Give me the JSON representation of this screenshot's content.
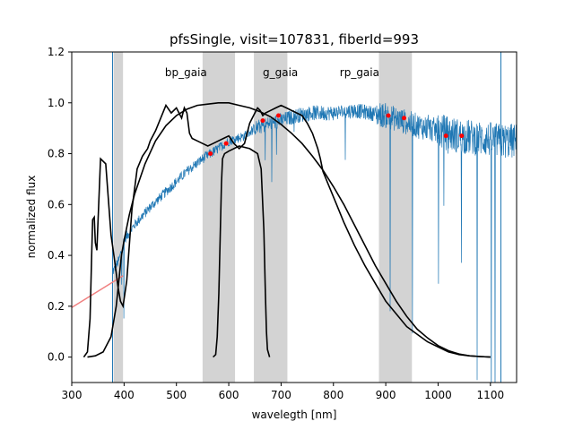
{
  "chart_data": {
    "type": "line",
    "title": "pfsSingle, visit=107831, fiberId=993",
    "xlabel": "wavelegth [nm]",
    "ylabel": "normalized flux",
    "xlim": [
      300,
      1150
    ],
    "ylim": [
      -0.1,
      1.2
    ],
    "grid": false,
    "xticks": [
      "300",
      "400",
      "500",
      "600",
      "700",
      "800",
      "900",
      "1000",
      "1100"
    ],
    "xtick_values": [
      300,
      400,
      500,
      600,
      700,
      800,
      900,
      1000,
      1100
    ],
    "yticks": [
      "0.0",
      "0.2",
      "0.4",
      "0.6",
      "0.8",
      "1.0",
      "1.2"
    ],
    "ytick_values": [
      0.0,
      0.2,
      0.4,
      0.6,
      0.8,
      1.0,
      1.2
    ],
    "colors": {
      "spectrum": "#1f77b4",
      "filters": "#000000",
      "points": "#ff0000",
      "fit_line": "#f08080",
      "masked_band": "#d3d3d3"
    },
    "masked_bands": [
      [
        380,
        398
      ],
      [
        550,
        612
      ],
      [
        648,
        712
      ],
      [
        887,
        950
      ]
    ],
    "filter_labels": [
      {
        "text": "bp_gaia",
        "x": 478,
        "y": 1.105
      },
      {
        "text": "g_gaia",
        "x": 665,
        "y": 1.105
      },
      {
        "text": "rp_gaia",
        "x": 812,
        "y": 1.105
      }
    ],
    "series": [
      {
        "name": "spectrum",
        "kind": "noisy_spectrum",
        "x": [
          380,
          390,
          400,
          420,
          450,
          480,
          500,
          520,
          550,
          580,
          600,
          630,
          650,
          680,
          700,
          730,
          760,
          800,
          840,
          870,
          900,
          930,
          960,
          1000,
          1040,
          1080,
          1120,
          1150
        ],
        "y": [
          0.34,
          0.38,
          0.46,
          0.52,
          0.59,
          0.65,
          0.69,
          0.73,
          0.78,
          0.82,
          0.85,
          0.87,
          0.9,
          0.92,
          0.93,
          0.95,
          0.96,
          0.96,
          0.97,
          0.96,
          0.95,
          0.93,
          0.91,
          0.89,
          0.87,
          0.86,
          0.85,
          0.85
        ]
      },
      {
        "name": "bp_gaia",
        "kind": "filter",
        "x": [
          323,
          330,
          335,
          338,
          340,
          343,
          345,
          348,
          355,
          365,
          375,
          382,
          388,
          393,
          398,
          405,
          415,
          425,
          435,
          445,
          450,
          460,
          470,
          480,
          490,
          500,
          510,
          515,
          520,
          525,
          530,
          540,
          550,
          560,
          570,
          580,
          590,
          600,
          610,
          620,
          630,
          635,
          640,
          645,
          650,
          655,
          660,
          665,
          670,
          680,
          690,
          700,
          710,
          720,
          730,
          740,
          750,
          760,
          770,
          775,
          780,
          790,
          800,
          820,
          840,
          860,
          880,
          900,
          920,
          940,
          960,
          980,
          1000,
          1020,
          1040,
          1060,
          1080,
          1100
        ],
        "y": [
          0.0,
          0.02,
          0.15,
          0.4,
          0.54,
          0.55,
          0.45,
          0.42,
          0.78,
          0.76,
          0.48,
          0.38,
          0.28,
          0.22,
          0.2,
          0.3,
          0.58,
          0.74,
          0.79,
          0.82,
          0.85,
          0.89,
          0.94,
          0.99,
          0.96,
          0.98,
          0.94,
          0.98,
          0.96,
          0.88,
          0.86,
          0.85,
          0.84,
          0.83,
          0.84,
          0.85,
          0.86,
          0.87,
          0.84,
          0.82,
          0.84,
          0.88,
          0.92,
          0.94,
          0.96,
          0.98,
          0.97,
          0.95,
          0.96,
          0.97,
          0.98,
          0.99,
          0.98,
          0.97,
          0.96,
          0.95,
          0.92,
          0.88,
          0.82,
          0.78,
          0.73,
          0.68,
          0.63,
          0.53,
          0.44,
          0.36,
          0.29,
          0.22,
          0.17,
          0.12,
          0.09,
          0.06,
          0.04,
          0.02,
          0.01,
          0.005,
          0.002,
          0.0
        ]
      },
      {
        "name": "g_gaia",
        "kind": "filter",
        "x": [
          330,
          345,
          360,
          375,
          385,
          390,
          395,
          400,
          410,
          420,
          440,
          460,
          480,
          500,
          520,
          540,
          560,
          580,
          600,
          620,
          640,
          660,
          680,
          700,
          720,
          740,
          760,
          780,
          800,
          820,
          840,
          860,
          880,
          900,
          920,
          940,
          960,
          980,
          1000,
          1020,
          1040,
          1060,
          1080,
          1100
        ],
        "y": [
          0.0,
          0.005,
          0.02,
          0.08,
          0.2,
          0.3,
          0.4,
          0.46,
          0.56,
          0.64,
          0.76,
          0.85,
          0.91,
          0.95,
          0.975,
          0.99,
          0.995,
          1.0,
          1.0,
          0.99,
          0.98,
          0.965,
          0.945,
          0.915,
          0.88,
          0.84,
          0.79,
          0.735,
          0.67,
          0.6,
          0.52,
          0.44,
          0.36,
          0.29,
          0.22,
          0.16,
          0.11,
          0.075,
          0.045,
          0.025,
          0.012,
          0.005,
          0.002,
          0.0
        ]
      },
      {
        "name": "rp_gaia",
        "kind": "filter",
        "x": [
          570,
          575,
          578,
          581,
          584,
          586,
          588,
          592,
          600,
          620,
          640,
          655,
          662,
          667,
          670,
          672,
          674,
          678
        ],
        "y": [
          0.0,
          0.01,
          0.08,
          0.25,
          0.5,
          0.68,
          0.78,
          0.8,
          0.81,
          0.83,
          0.82,
          0.8,
          0.74,
          0.5,
          0.25,
          0.1,
          0.03,
          0.0
        ]
      },
      {
        "name": "fit_line",
        "kind": "line",
        "x": [
          300,
          398
        ],
        "y": [
          0.195,
          0.32
        ]
      },
      {
        "name": "photometry_points",
        "kind": "scatter",
        "x": [
          565,
          595,
          665,
          695,
          905,
          935,
          1015,
          1045
        ],
        "y": [
          0.8,
          0.84,
          0.93,
          0.95,
          0.95,
          0.94,
          0.87,
          0.87
        ]
      }
    ]
  }
}
